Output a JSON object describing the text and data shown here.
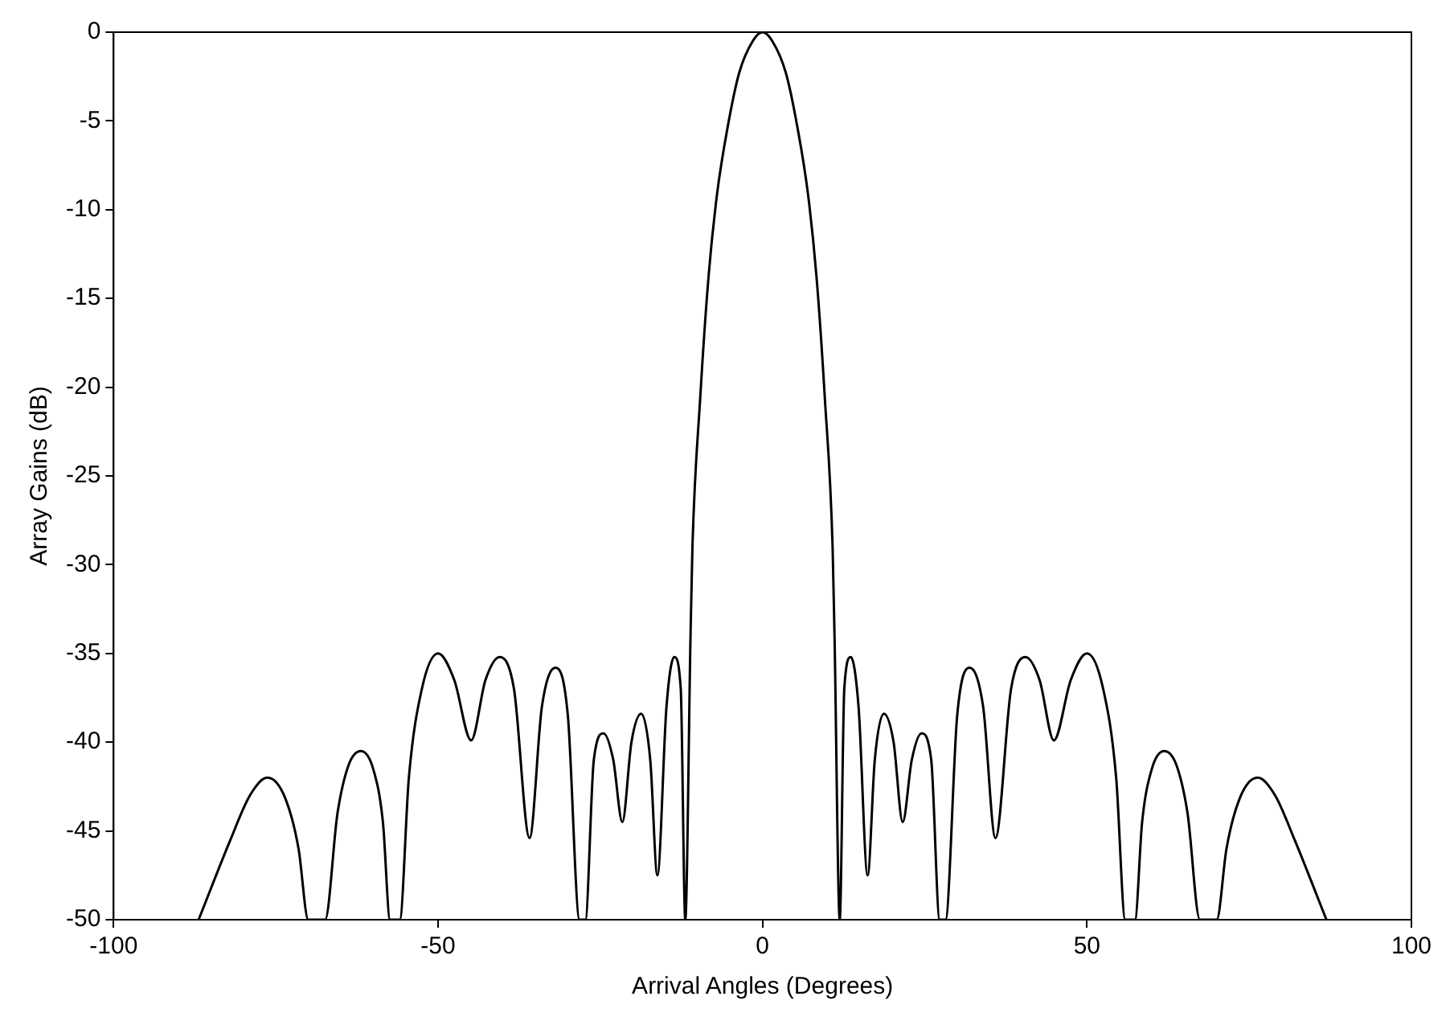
{
  "chart_data": {
    "type": "line",
    "xlabel": "Arrival Angles (Degrees)",
    "ylabel": "Array Gains (dB)",
    "xlim": [
      -100,
      100
    ],
    "xticks": [
      -100,
      -50,
      0,
      50,
      100
    ],
    "ylim": [
      -50,
      0
    ],
    "yticks": [
      -50,
      -45,
      -40,
      -35,
      -30,
      -25,
      -20,
      -15,
      -10,
      -5,
      0
    ],
    "grid": false,
    "legend": false,
    "marker": "none",
    "line_style": "solid",
    "series": [
      {
        "color": "#000000",
        "x": [
          -86.9,
          -82,
          -79,
          -76.3,
          -73.5,
          -71.5,
          -70,
          -67.4,
          -65.5,
          -63.8,
          -61.9,
          -60,
          -58.5,
          -57.4,
          -55.9,
          -54.5,
          -52.5,
          -50,
          -47.5,
          -44.9,
          -42.7,
          -40.5,
          -38.3,
          -35.9,
          -34,
          -31.9,
          -30,
          -28.2,
          -27.3,
          -26,
          -24.5,
          -23,
          -21.6,
          -20.2,
          -18.7,
          -17.3,
          -16.2,
          -14.8,
          -13.6,
          -12.6,
          -11.9,
          -11.1,
          -10.8,
          -9.6,
          -8.3,
          -7,
          -5.4,
          -3.6,
          -1.5,
          0,
          1.5,
          3.6,
          5.4,
          7,
          8.3,
          9.6,
          10.8,
          11.1,
          11.9,
          12.6,
          13.6,
          14.8,
          16.2,
          17.3,
          18.7,
          20.2,
          21.6,
          23,
          24.5,
          26,
          27.3,
          28.2,
          30,
          31.9,
          34,
          35.9,
          38.3,
          40.5,
          42.7,
          44.9,
          47.5,
          50,
          52.5,
          54.5,
          55.9,
          57.4,
          58.5,
          60,
          61.9,
          63.8,
          65.5,
          67.4,
          70,
          71.5,
          73.5,
          76.3,
          79,
          82,
          86.9
        ],
        "values": [
          -50,
          -45.5,
          -43,
          -42,
          -43.2,
          -46,
          -50,
          -50,
          -44,
          -41.3,
          -40.5,
          -41.5,
          -44.5,
          -50,
          -50,
          -42,
          -37,
          -35,
          -36.5,
          -39.9,
          -36.5,
          -35.2,
          -37,
          -45.4,
          -38,
          -35.8,
          -38.5,
          -50,
          -50,
          -41,
          -39.5,
          -41,
          -44.5,
          -40,
          -38.4,
          -41,
          -47.5,
          -38,
          -35.2,
          -37,
          -50,
          -34.1,
          -29,
          -20.6,
          -13.7,
          -9.1,
          -5.4,
          -2.3,
          -0.5,
          0,
          -0.5,
          -2.3,
          -5.4,
          -9.1,
          -13.7,
          -20.6,
          -29,
          -34.1,
          -50,
          -37,
          -35.2,
          -38,
          -47.5,
          -41,
          -38.4,
          -40,
          -44.5,
          -41,
          -39.5,
          -41,
          -50,
          -50,
          -38.5,
          -35.8,
          -38,
          -45.4,
          -37,
          -35.2,
          -36.5,
          -39.9,
          -36.5,
          -35,
          -37,
          -42,
          -50,
          -50,
          -44.5,
          -41.5,
          -40.5,
          -41.3,
          -44,
          -50,
          -50,
          -46,
          -43.2,
          -42,
          -43,
          -45.5,
          -50
        ]
      }
    ]
  }
}
